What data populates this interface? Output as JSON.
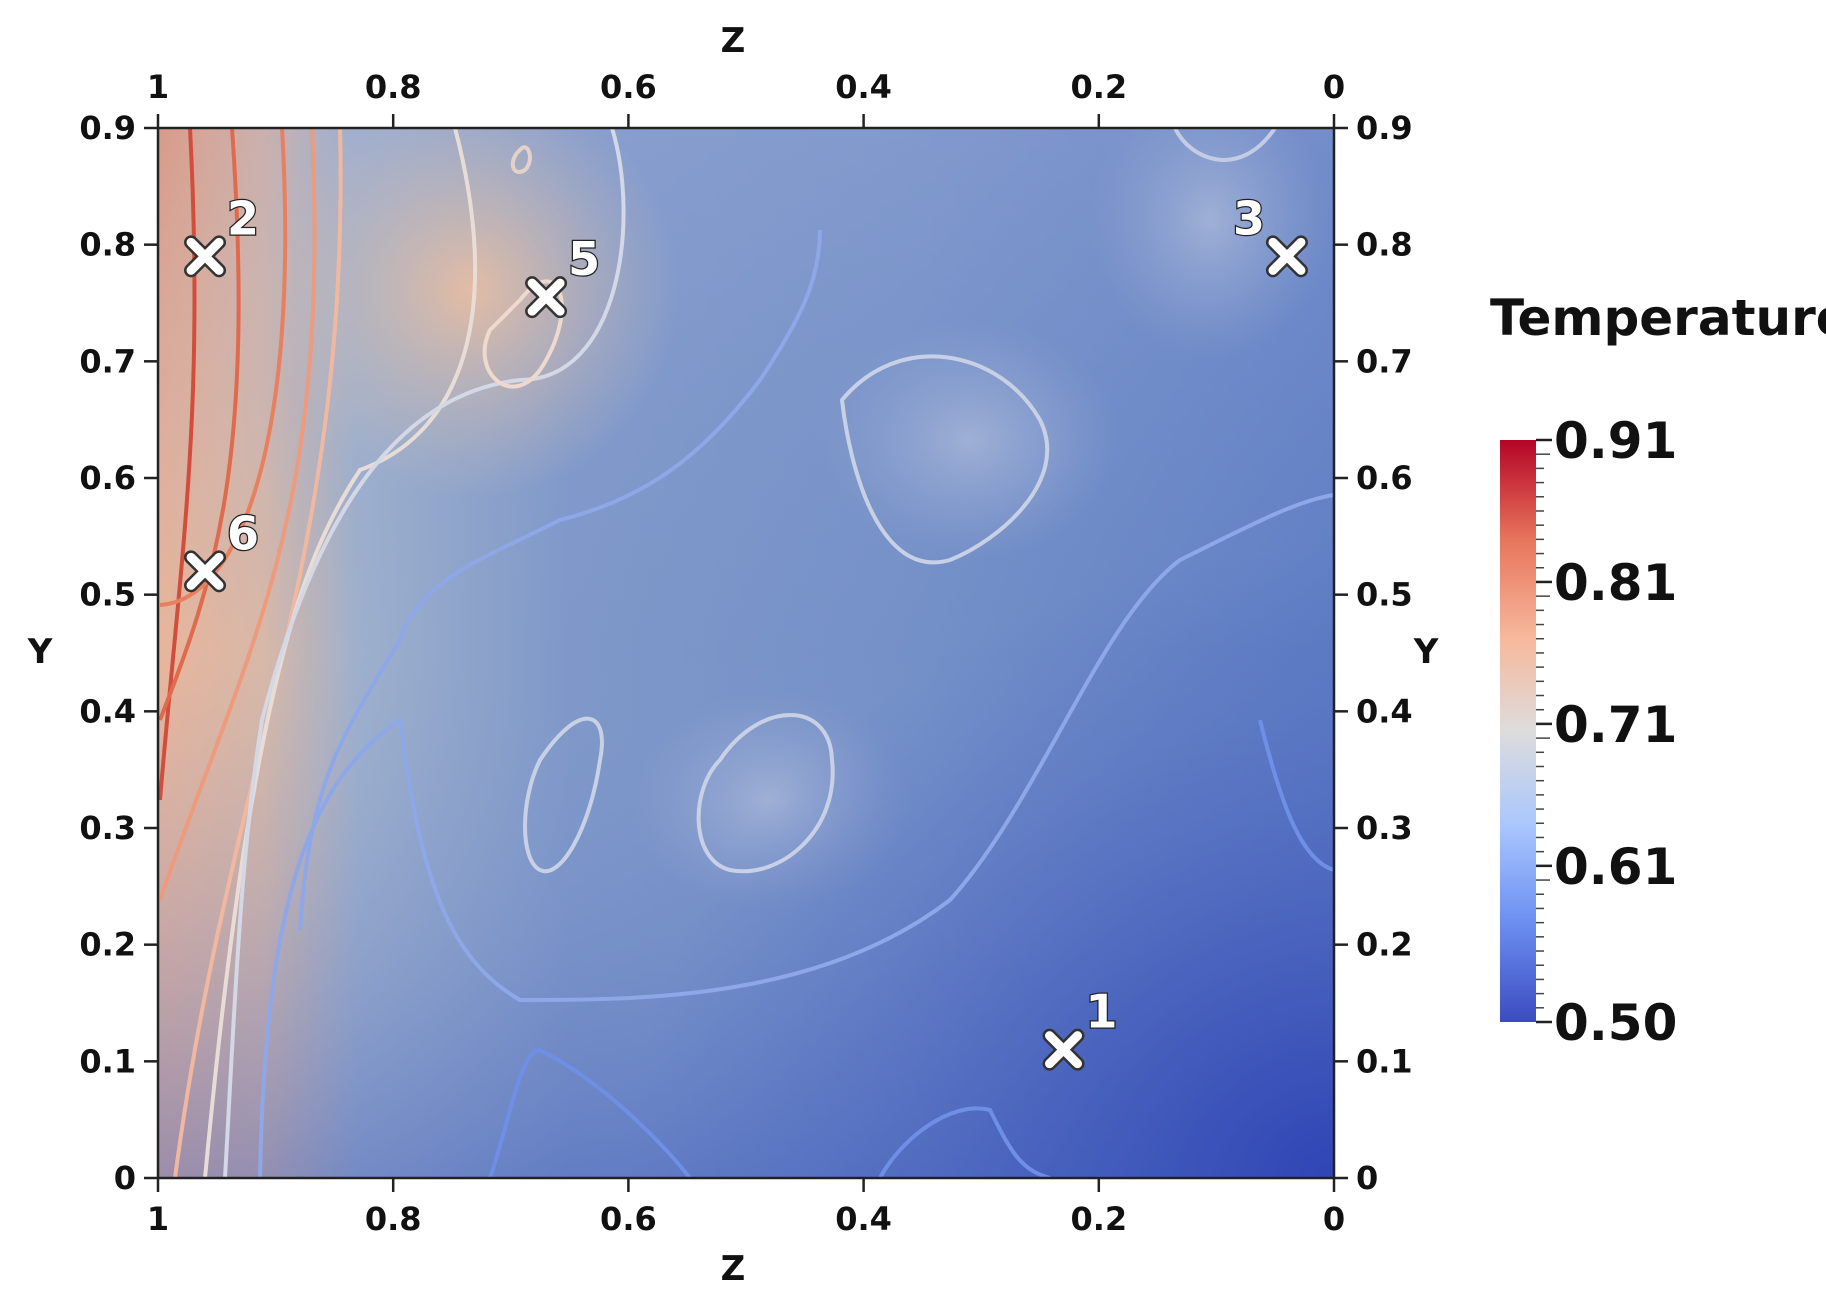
{
  "chart_data": {
    "type": "heatmap",
    "colorbar": {
      "title": "Temperature",
      "min": 0.5,
      "max": 0.91,
      "tick_labels": [
        "0.91",
        "0.81",
        "0.71",
        "0.61",
        "0.50"
      ],
      "tick_values": [
        0.91,
        0.81,
        0.71,
        0.61,
        0.5
      ],
      "colors": [
        "#3b4cc0",
        "#6f92f3",
        "#aac7fd",
        "#dddcdc",
        "#f7b89c",
        "#e7745b",
        "#b40426"
      ]
    },
    "axes": {
      "bottom": {
        "label": "Z",
        "ticks": [
          "1",
          "0.8",
          "0.6",
          "0.4",
          "0.2",
          "0"
        ],
        "range": [
          1,
          0
        ]
      },
      "top": {
        "label": "Z",
        "ticks": [
          "1",
          "0.8",
          "0.6",
          "0.4",
          "0.2",
          "0"
        ],
        "range": [
          1,
          0
        ]
      },
      "left": {
        "label": "Y",
        "ticks": [
          "0.9",
          "0.8",
          "0.7",
          "0.6",
          "0.5",
          "0.4",
          "0.3",
          "0.2",
          "0.1",
          "0"
        ],
        "range": [
          0,
          0.9
        ]
      },
      "right": {
        "label": "Y",
        "ticks": [
          "0.9",
          "0.8",
          "0.7",
          "0.6",
          "0.5",
          "0.4",
          "0.3",
          "0.2",
          "0.1",
          "0"
        ],
        "range": [
          0,
          0.9
        ]
      }
    },
    "markers": [
      {
        "label": "1",
        "z": 0.23,
        "y": 0.11
      },
      {
        "label": "2",
        "z": 0.96,
        "y": 0.79
      },
      {
        "label": "3",
        "z": 0.04,
        "y": 0.79
      },
      {
        "label": "5",
        "z": 0.67,
        "y": 0.755
      },
      {
        "label": "6",
        "z": 0.96,
        "y": 0.52
      }
    ],
    "field_samples": [
      {
        "z": 1.0,
        "y": 0.9,
        "t": 0.91
      },
      {
        "z": 0.95,
        "y": 0.75,
        "t": 0.88
      },
      {
        "z": 0.95,
        "y": 0.5,
        "t": 0.82
      },
      {
        "z": 0.95,
        "y": 0.3,
        "t": 0.78
      },
      {
        "z": 0.95,
        "y": 0.1,
        "t": 0.72
      },
      {
        "z": 0.85,
        "y": 0.8,
        "t": 0.79
      },
      {
        "z": 0.67,
        "y": 0.75,
        "t": 0.77
      },
      {
        "z": 0.6,
        "y": 0.7,
        "t": 0.71
      },
      {
        "z": 0.5,
        "y": 0.4,
        "t": 0.63
      },
      {
        "z": 0.4,
        "y": 0.65,
        "t": 0.66
      },
      {
        "z": 0.2,
        "y": 0.1,
        "t": 0.55
      },
      {
        "z": 0.05,
        "y": 0.85,
        "t": 0.64
      },
      {
        "z": 0.0,
        "y": 0.0,
        "t": 0.5
      }
    ]
  }
}
